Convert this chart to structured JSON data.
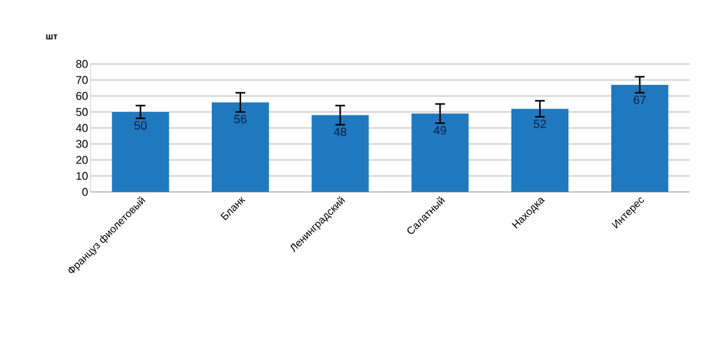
{
  "chart_data": {
    "type": "bar",
    "ylabel": "шт",
    "categories": [
      "Француз фиолетовый",
      "Бланк",
      "Ленинградский",
      "Салатный",
      "Находка",
      "Интерес"
    ],
    "values": [
      50,
      56,
      48,
      49,
      52,
      67
    ],
    "errors": [
      4,
      6,
      6,
      6,
      5,
      5
    ],
    "color": "#2079be",
    "ylim": [
      0,
      80
    ],
    "yticks": [
      0,
      10,
      20,
      30,
      40,
      50,
      60,
      70,
      80
    ],
    "grid": "y",
    "data_labels": true
  }
}
